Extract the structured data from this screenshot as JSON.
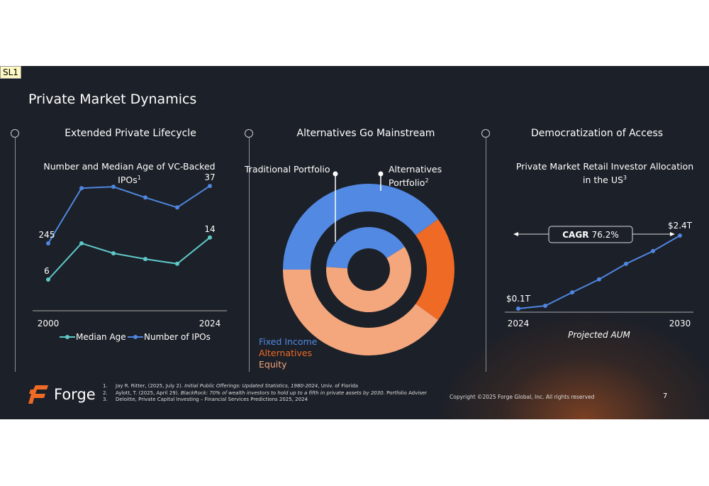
{
  "label": "SL1",
  "title": "Private Market Dynamics",
  "sections": [
    {
      "heading": "Extended Private Lifecycle",
      "subtitle": "Number and Median Age of VC-Backed IPOs",
      "sup": "1"
    },
    {
      "heading": "Alternatives Go Mainstream"
    },
    {
      "heading": "Democratization of Access",
      "subtitle": "Private Market Retail Investor Allocation in the US",
      "sup": "3"
    }
  ],
  "chart_data": [
    {
      "type": "line",
      "title": "Number and Median Age of VC-Backed IPOs",
      "x_labels": [
        "2000",
        "2024"
      ],
      "series": [
        {
          "name": "Median Age",
          "color": "#5ec8c8",
          "values": [
            6,
            12.9,
            11,
            9.9,
            9,
            14
          ],
          "labels": [
            "6",
            "",
            "",
            "",
            "",
            "14"
          ]
        },
        {
          "name": "Number of IPOs",
          "color": "#4f86e0",
          "values": [
            245,
            45,
            40,
            79,
            115,
            37
          ],
          "labels": [
            "245",
            "",
            "",
            "",
            "",
            "37"
          ]
        }
      ]
    },
    {
      "type": "pie",
      "subtype": "double-donut",
      "callouts": {
        "traditional": "Traditional Portfolio",
        "alternatives": "Alternatives",
        "alternatives2": "Portfolio",
        "sup": "2"
      },
      "legend": [
        {
          "name": "Fixed Income",
          "color": "#5189e3"
        },
        {
          "name": "Alternatives",
          "color": "#ef6a25"
        },
        {
          "name": "Equity",
          "color": "#f4a67c"
        }
      ],
      "outer": {
        "name": "Alternatives Portfolio",
        "values": {
          "Fixed Income": 40,
          "Alternatives": 20,
          "Equity": 40
        }
      },
      "inner": {
        "name": "Traditional Portfolio",
        "values": {
          "Fixed Income": 40,
          "Alternatives": 0,
          "Equity": 60
        }
      }
    },
    {
      "type": "line",
      "title": "Private Market Retail Investor Allocation in the US",
      "xlabel": "Projected AUM",
      "x": [
        2024,
        2025,
        2026,
        2027,
        2028,
        2029,
        2030
      ],
      "values": [
        0.1,
        0.19,
        0.61,
        1.02,
        1.51,
        1.91,
        2.4
      ],
      "start_label": "$0.1T",
      "end_label": "$2.4T",
      "x_labels": [
        "2024",
        "2030"
      ],
      "color": "#4f86e0",
      "cagr_label": "CAGR",
      "cagr_value": "76.2%"
    }
  ],
  "footer": {
    "brand": "Forge",
    "notes": [
      {
        "n": "1.",
        "pre": "Jay R. Ritter, (2025, July 2). ",
        "it": "Initial Public Offerings: Updated Statistics, 1980-2024",
        "post": ", Univ. of Florida"
      },
      {
        "n": "2.",
        "pre": "Aylott, T. (2025, April 29). ",
        "it": "BlackRock: 70% of wealth investors to hold up to a fifth in private assets by 2030.",
        "post": " Portfolio Adviser"
      },
      {
        "n": "3.",
        "pre": "Deloitte, Private Capital Investing – Financial Services Predictions 2025, 2024",
        "it": "",
        "post": ""
      }
    ],
    "copyright": "Copyright ©2025 Forge Global, Inc. All rights reserved",
    "page": "7"
  }
}
